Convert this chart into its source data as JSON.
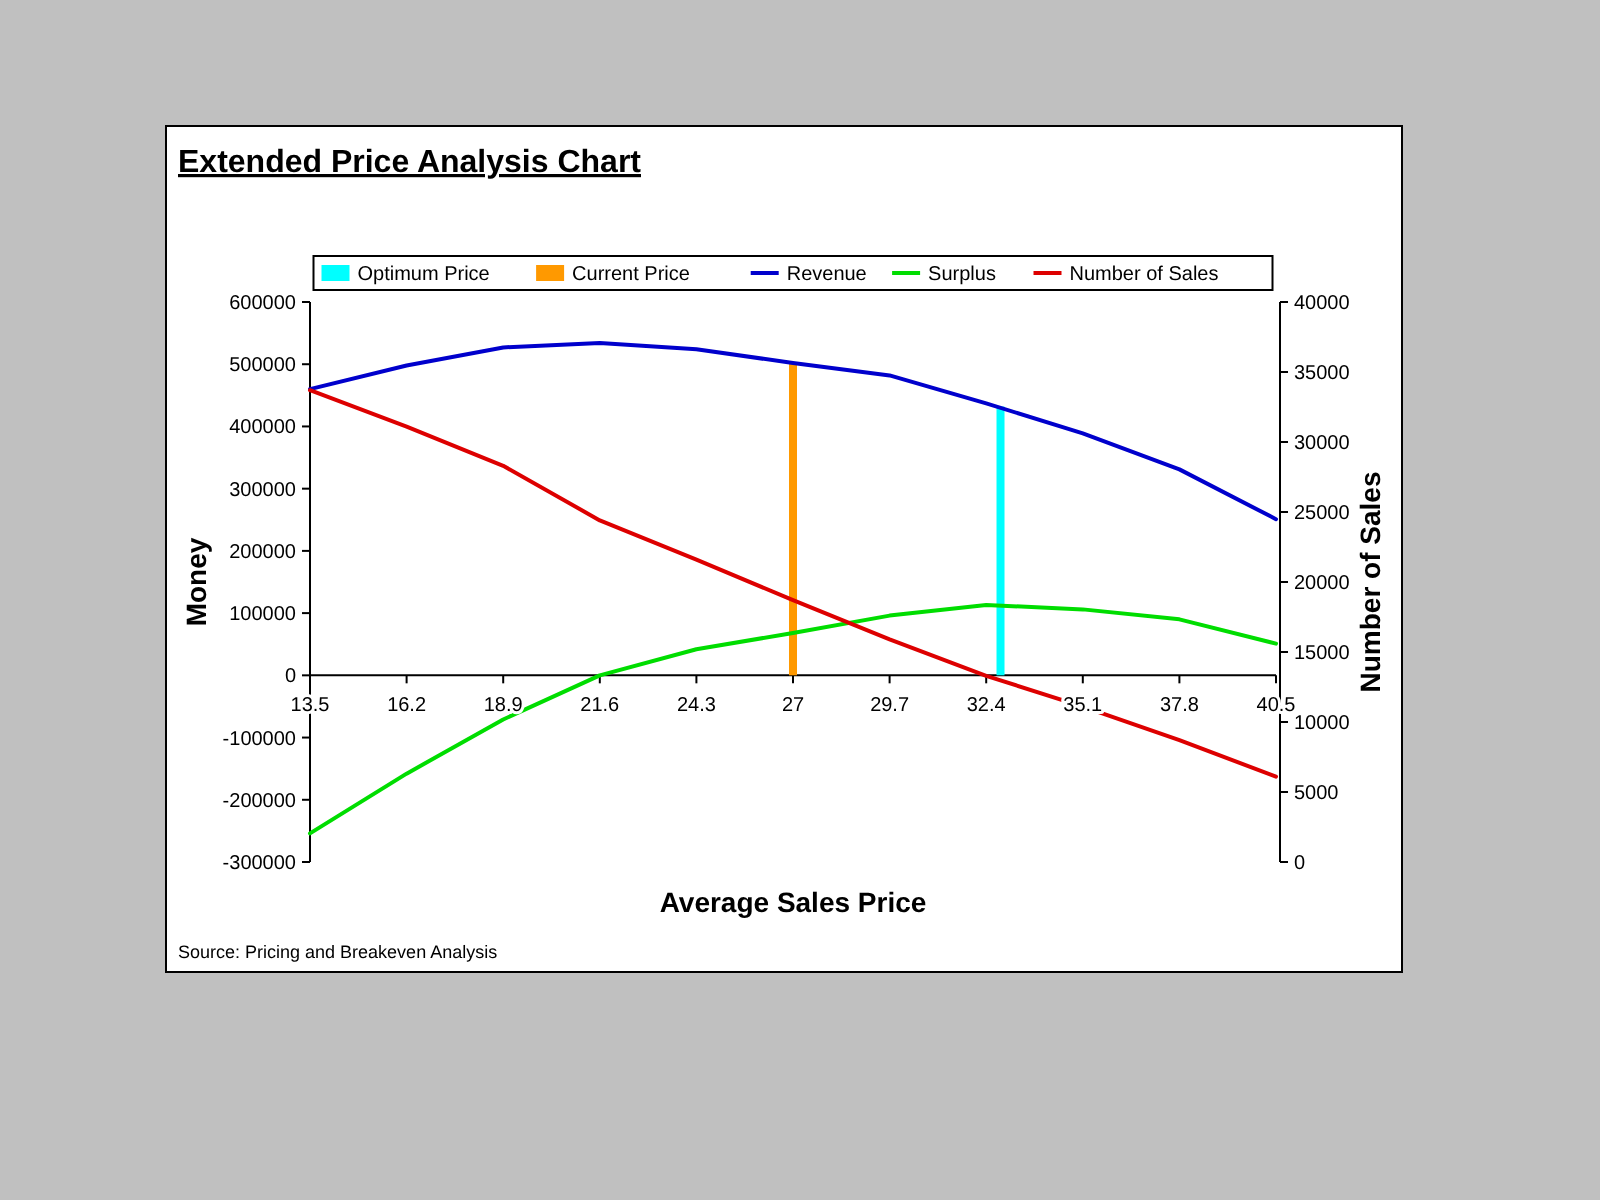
{
  "chart_data": {
    "type": "line",
    "title": "Extended Price Analysis Chart",
    "xlabel": "Average Sales Price",
    "ylabel": "Money",
    "y2label": "Number of Sales",
    "annotations": [
      "Source: Pricing and Breakeven Analysis"
    ],
    "xlim": [
      13.5,
      40.5
    ],
    "xticks": [
      13.5,
      16.2,
      18.9,
      21.6,
      24.3,
      27,
      29.7,
      32.4,
      35.1,
      37.8,
      40.5
    ],
    "ylim": [
      -300000,
      600000
    ],
    "yticks": [
      -300000,
      -200000,
      -100000,
      0,
      100000,
      200000,
      300000,
      400000,
      500000,
      600000
    ],
    "y2lim": [
      0,
      40000
    ],
    "y2ticks": [
      0,
      5000,
      10000,
      15000,
      20000,
      25000,
      30000,
      35000,
      40000
    ],
    "x": [
      13.5,
      16.2,
      18.9,
      21.6,
      24.3,
      27,
      29.7,
      32.4,
      35.1,
      37.8,
      40.5
    ],
    "series": [
      {
        "name": "Optimum Price",
        "type": "bar",
        "color": "#00ffff",
        "x": [
          32.8
        ],
        "values": [
          432000
        ]
      },
      {
        "name": "Current Price",
        "type": "bar",
        "color": "#ff9900",
        "x": [
          27
        ],
        "values": [
          502000
        ]
      },
      {
        "name": "Revenue",
        "color": "#0000cc",
        "values": [
          460000,
          498000,
          527000,
          534000,
          524000,
          502000,
          482000,
          437000,
          389000,
          331000,
          251000
        ]
      },
      {
        "name": "Surplus",
        "color": "#00dd00",
        "values": [
          -254000,
          -158000,
          -71000,
          0,
          42000,
          68000,
          96000,
          113000,
          106000,
          90000,
          51000
        ]
      },
      {
        "name": "Number of Sales",
        "color": "#dd0000",
        "axis": "y2",
        "values": [
          33700,
          31100,
          28300,
          24400,
          21600,
          18700,
          15900,
          13300,
          11100,
          8700,
          6100
        ]
      }
    ],
    "grid": false,
    "legend": "top",
    "marker": "none",
    "line_style": "solid"
  }
}
